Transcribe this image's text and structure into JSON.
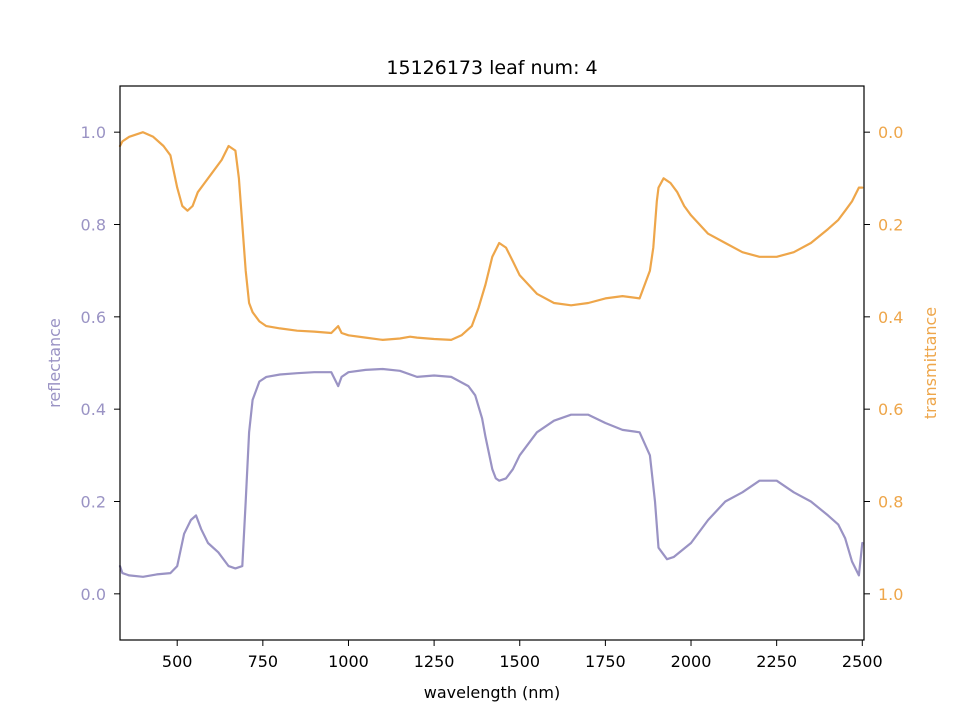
{
  "chart_data": {
    "type": "line",
    "title": "15126173 leaf num: 4",
    "xlabel": "wavelength (nm)",
    "ylabel_left": "reflectance",
    "ylabel_right": "transmittance",
    "xlim": [
      333,
      2505
    ],
    "ylim_left": [
      -0.1,
      1.1
    ],
    "ylim_right_inverted": [
      1.1,
      -0.1
    ],
    "x_ticks": [
      500,
      750,
      1000,
      1250,
      1500,
      1750,
      2000,
      2250,
      2500
    ],
    "y_left_ticks": [
      0.0,
      0.2,
      0.4,
      0.6,
      0.8,
      1.0
    ],
    "y_right_ticks": [
      0.0,
      0.2,
      0.4,
      0.6,
      0.8,
      1.0
    ],
    "grid": false,
    "colors": {
      "reflectance": "#9a93c4",
      "transmittance": "#eea64a"
    },
    "series": [
      {
        "name": "reflectance",
        "axis": "left",
        "x": [
          333,
          340,
          360,
          400,
          440,
          480,
          500,
          520,
          540,
          555,
          570,
          590,
          620,
          650,
          670,
          690,
          700,
          710,
          720,
          740,
          760,
          800,
          850,
          900,
          950,
          970,
          980,
          1000,
          1050,
          1100,
          1150,
          1200,
          1250,
          1300,
          1350,
          1370,
          1390,
          1400,
          1420,
          1430,
          1440,
          1460,
          1480,
          1500,
          1550,
          1600,
          1650,
          1700,
          1750,
          1800,
          1850,
          1880,
          1895,
          1905,
          1915,
          1930,
          1950,
          2000,
          2050,
          2100,
          2150,
          2200,
          2250,
          2300,
          2350,
          2400,
          2430,
          2450,
          2470,
          2490,
          2500
        ],
        "y": [
          0.06,
          0.045,
          0.04,
          0.037,
          0.042,
          0.045,
          0.06,
          0.13,
          0.16,
          0.17,
          0.14,
          0.11,
          0.09,
          0.06,
          0.055,
          0.06,
          0.2,
          0.35,
          0.42,
          0.46,
          0.47,
          0.475,
          0.478,
          0.48,
          0.48,
          0.45,
          0.47,
          0.48,
          0.485,
          0.487,
          0.483,
          0.47,
          0.473,
          0.47,
          0.45,
          0.43,
          0.38,
          0.34,
          0.27,
          0.25,
          0.245,
          0.25,
          0.27,
          0.3,
          0.35,
          0.375,
          0.388,
          0.388,
          0.37,
          0.355,
          0.35,
          0.3,
          0.2,
          0.1,
          0.09,
          0.075,
          0.08,
          0.11,
          0.16,
          0.2,
          0.22,
          0.245,
          0.245,
          0.22,
          0.2,
          0.17,
          0.15,
          0.12,
          0.07,
          0.04,
          0.11
        ]
      },
      {
        "name": "transmittance",
        "axis": "right",
        "x": [
          333,
          340,
          360,
          400,
          430,
          460,
          480,
          500,
          515,
          530,
          545,
          560,
          580,
          600,
          630,
          650,
          670,
          680,
          690,
          700,
          710,
          720,
          740,
          760,
          800,
          850,
          900,
          950,
          970,
          980,
          1000,
          1050,
          1100,
          1150,
          1180,
          1200,
          1250,
          1300,
          1330,
          1360,
          1380,
          1400,
          1420,
          1440,
          1460,
          1480,
          1500,
          1550,
          1600,
          1650,
          1700,
          1750,
          1800,
          1850,
          1880,
          1890,
          1900,
          1905,
          1920,
          1940,
          1960,
          1980,
          2000,
          2050,
          2100,
          2150,
          2200,
          2250,
          2300,
          2350,
          2400,
          2430,
          2450,
          2470,
          2490,
          2500
        ],
        "y": [
          0.03,
          0.02,
          0.01,
          0.0,
          0.01,
          0.03,
          0.05,
          0.12,
          0.16,
          0.17,
          0.16,
          0.13,
          0.11,
          0.09,
          0.06,
          0.03,
          0.04,
          0.1,
          0.2,
          0.3,
          0.37,
          0.39,
          0.41,
          0.42,
          0.425,
          0.43,
          0.432,
          0.435,
          0.42,
          0.435,
          0.44,
          0.445,
          0.45,
          0.447,
          0.443,
          0.445,
          0.448,
          0.45,
          0.44,
          0.42,
          0.38,
          0.33,
          0.27,
          0.24,
          0.25,
          0.28,
          0.31,
          0.35,
          0.37,
          0.375,
          0.37,
          0.36,
          0.355,
          0.36,
          0.3,
          0.25,
          0.15,
          0.12,
          0.1,
          0.11,
          0.13,
          0.16,
          0.18,
          0.22,
          0.24,
          0.26,
          0.27,
          0.27,
          0.26,
          0.24,
          0.21,
          0.19,
          0.17,
          0.15,
          0.12,
          0.12
        ]
      }
    ]
  }
}
